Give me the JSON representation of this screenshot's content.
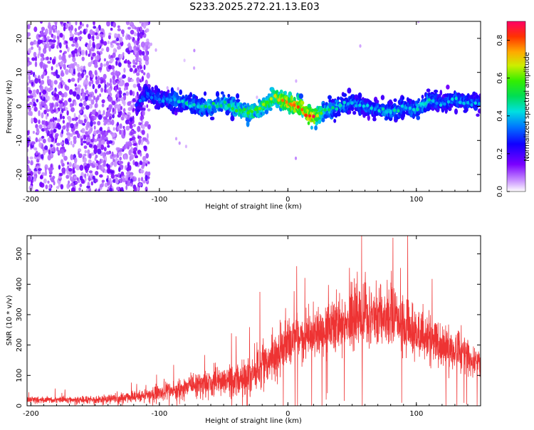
{
  "title": "S233.2025.272.21.13.E03",
  "chart_data": [
    {
      "type": "heatmap",
      "xlabel": "Height of straight line (km)",
      "ylabel": "Frequency (Hz)",
      "xlim": [
        -203,
        150
      ],
      "ylim": [
        -25,
        25
      ],
      "x_ticks": [
        -200,
        -100,
        0,
        100
      ],
      "y_ticks": [
        -20,
        -10,
        0,
        10,
        20
      ],
      "colorbar": {
        "label": "Normalized spectral amplitude",
        "range": [
          0,
          0.9
        ],
        "ticks": [
          "0.0",
          "0.2",
          "0.4",
          "0.6",
          "0.8"
        ]
      },
      "ridge": {
        "x": [
          -118,
          -110,
          -100,
          -90,
          -80,
          -70,
          -60,
          -50,
          -40,
          -30,
          -20,
          -10,
          0,
          10,
          15,
          20,
          25,
          30,
          40,
          50,
          60,
          70,
          80,
          90,
          100,
          110,
          120,
          130,
          140,
          150
        ],
        "frequency": [
          0,
          4,
          2,
          2,
          1,
          0,
          0,
          1,
          -1,
          -2,
          0,
          3,
          1,
          0,
          -3,
          -3,
          -2,
          -1,
          0,
          1,
          0,
          -1,
          -2,
          0,
          -1,
          2,
          1,
          2,
          1,
          1
        ],
        "peak_amplitude": [
          0.3,
          0.35,
          0.35,
          0.4,
          0.45,
          0.45,
          0.5,
          0.5,
          0.55,
          0.6,
          0.6,
          0.7,
          0.85,
          0.8,
          0.9,
          0.9,
          0.6,
          0.5,
          0.45,
          0.4,
          0.4,
          0.4,
          0.45,
          0.4,
          0.45,
          0.45,
          0.35,
          0.4,
          0.4,
          0.35
        ]
      },
      "scatter_region_x": [
        -203,
        -120
      ],
      "scatter_spread_hz": 25,
      "grid": false
    },
    {
      "type": "line",
      "xlabel": "Height of straight line (km)",
      "ylabel": "SNR (10 * v/v)",
      "xlim": [
        -203,
        150
      ],
      "ylim": [
        0,
        560
      ],
      "x_ticks": [
        -200,
        -100,
        0,
        100
      ],
      "y_ticks": [
        0,
        100,
        200,
        300,
        400,
        500
      ],
      "color": "#ee3333",
      "envelope": {
        "x": [
          -203,
          -180,
          -150,
          -130,
          -110,
          -90,
          -70,
          -50,
          -30,
          -20,
          0,
          20,
          40,
          60,
          80,
          100,
          120,
          140,
          150
        ],
        "mean": [
          20,
          20,
          20,
          25,
          35,
          50,
          70,
          80,
          90,
          140,
          200,
          240,
          280,
          300,
          290,
          240,
          200,
          170,
          130
        ],
        "spread": [
          12,
          12,
          15,
          18,
          25,
          35,
          50,
          60,
          70,
          80,
          90,
          100,
          110,
          130,
          120,
          100,
          80,
          60,
          50
        ]
      },
      "grid": false
    }
  ]
}
